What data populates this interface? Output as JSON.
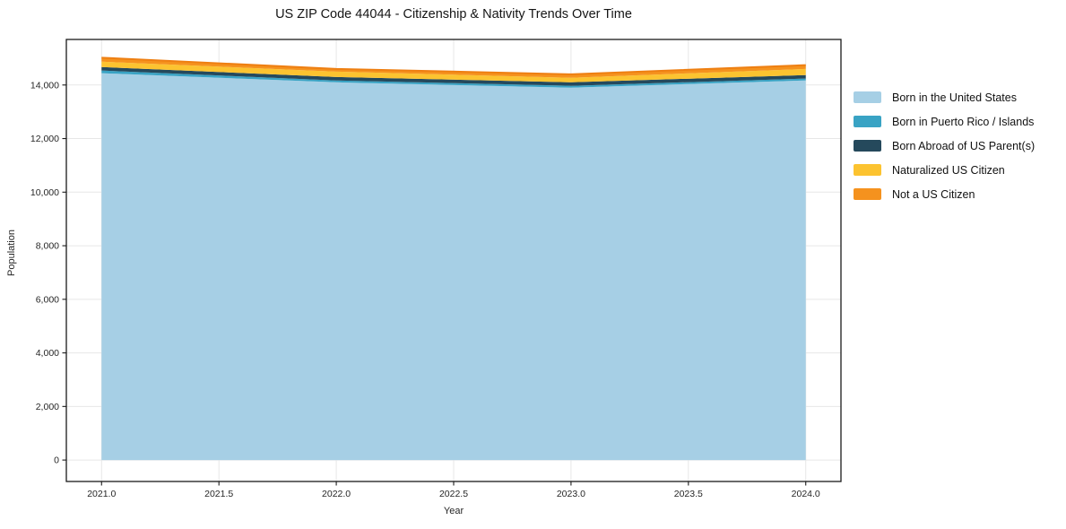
{
  "chart_data": {
    "type": "area",
    "stacked": true,
    "title": "US ZIP Code 44044 - Citizenship & Nativity Trends Over Time",
    "xlabel": "Year",
    "ylabel": "Population",
    "x": [
      2021,
      2022,
      2023,
      2024
    ],
    "series": [
      {
        "name": "Born in the United States",
        "color": "#a6cfe5",
        "values": [
          14440,
          14100,
          13900,
          14170
        ]
      },
      {
        "name": "Born in Puerto Rico / Islands",
        "color": "#39a3c4",
        "values": [
          100,
          70,
          70,
          70
        ]
      },
      {
        "name": "Born Abroad of US Parent(s)",
        "color": "#25495c",
        "values": [
          130,
          130,
          130,
          130
        ]
      },
      {
        "name": "Naturalized US Citizen",
        "color": "#fcc330",
        "values": [
          200,
          200,
          170,
          230
        ]
      },
      {
        "name": "Not a US Citizen",
        "color": "#f5921e",
        "values": [
          150,
          100,
          130,
          140
        ]
      }
    ],
    "xticks": [
      2021.0,
      2021.5,
      2022.0,
      2022.5,
      2023.0,
      2023.5,
      2024.0
    ],
    "yticks": [
      0,
      2000,
      4000,
      6000,
      8000,
      10000,
      12000,
      14000
    ],
    "xlim": [
      2020.85,
      2024.15
    ],
    "ylim": [
      -800,
      15700
    ],
    "grid": true,
    "grid_color": "#e7e7e7",
    "spine_color": "#1a1a1a",
    "tick_label_color": "#262626",
    "top_edge_color": "#ee7f12",
    "legend_position": "right"
  }
}
